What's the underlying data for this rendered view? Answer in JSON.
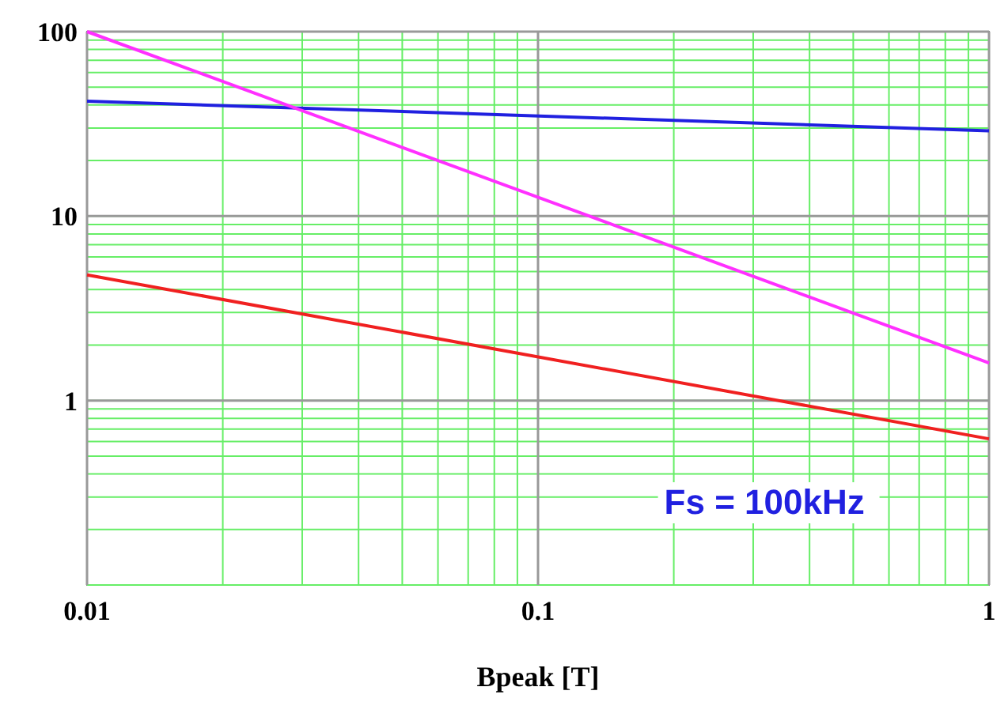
{
  "chart_data": {
    "type": "line",
    "xlabel": "Bpeak [T]",
    "log": "xy",
    "grid": true,
    "xlim": [
      0.01,
      1
    ],
    "ylim": [
      0.1,
      100
    ],
    "xticks": [
      0.01,
      0.1,
      1
    ],
    "yticks": [
      1,
      10,
      100
    ],
    "annotations": [
      "Fs = 100kHz"
    ],
    "x": [
      0.01,
      1
    ],
    "series": [
      {
        "color": "#2020e0",
        "values": [
          42,
          29
        ]
      },
      {
        "color": "#ff30ff",
        "values": [
          100,
          1.6
        ]
      },
      {
        "color": "#f02020",
        "values": [
          4.8,
          0.62
        ]
      }
    ]
  }
}
